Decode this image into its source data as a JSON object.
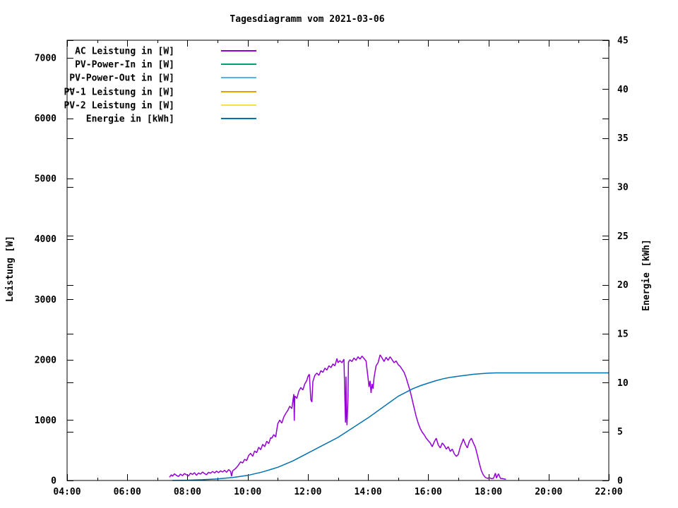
{
  "chart_data": {
    "type": "line",
    "title": "Tagesdiagramm vom 2021-03-06",
    "grid": false,
    "x_axis": {
      "label": "",
      "unit": "time",
      "start_minutes": 240,
      "end_minutes": 1320,
      "major_tick_minutes": 120,
      "minor_tick_minutes": 60,
      "tick_labels": [
        "04:00",
        "06:00",
        "08:00",
        "10:00",
        "12:00",
        "14:00",
        "16:00",
        "18:00",
        "20:00",
        "22:00"
      ]
    },
    "y_axis": {
      "label": "Leistung [W]",
      "range": [
        0,
        7290
      ],
      "ticks": [
        0,
        1000,
        2000,
        3000,
        4000,
        5000,
        6000,
        7000
      ]
    },
    "y2_axis": {
      "label": "Energie [kWh]",
      "range": [
        0,
        45
      ],
      "ticks": [
        0,
        5,
        10,
        15,
        20,
        25,
        30,
        35,
        40,
        45
      ]
    },
    "legend": {
      "position": "top-left-inside",
      "entries": [
        {
          "label": "AC Leistung in [W]",
          "color": "#9400d3"
        },
        {
          "label": "PV-Power-In in [W]",
          "color": "#009e73"
        },
        {
          "label": "PV-Power-Out in [W]",
          "color": "#56b4e9"
        },
        {
          "label": "PV-1 Leistung in [W]",
          "color": "#e69f00"
        },
        {
          "label": "PV-2 Leistung in [W]",
          "color": "#f0e442"
        },
        {
          "label": "Energie in [kWh]",
          "color": "#0072b2"
        }
      ]
    },
    "series": [
      {
        "name": "AC Leistung in [W]",
        "color": "#9400d3",
        "axis": "y1",
        "points_t_min_watt": [
          [
            444,
            55
          ],
          [
            448,
            95
          ],
          [
            450,
            70
          ],
          [
            454,
            110
          ],
          [
            458,
            85
          ],
          [
            462,
            65
          ],
          [
            466,
            105
          ],
          [
            470,
            80
          ],
          [
            474,
            115
          ],
          [
            478,
            95
          ],
          [
            482,
            75
          ],
          [
            486,
            120
          ],
          [
            490,
            100
          ],
          [
            494,
            130
          ],
          [
            498,
            85
          ],
          [
            502,
            125
          ],
          [
            506,
            105
          ],
          [
            510,
            140
          ],
          [
            514,
            115
          ],
          [
            518,
            95
          ],
          [
            522,
            135
          ],
          [
            526,
            120
          ],
          [
            530,
            150
          ],
          [
            534,
            125
          ],
          [
            538,
            155
          ],
          [
            542,
            130
          ],
          [
            546,
            160
          ],
          [
            550,
            140
          ],
          [
            554,
            170
          ],
          [
            558,
            135
          ],
          [
            562,
            180
          ],
          [
            566,
            150
          ],
          [
            568,
            70
          ],
          [
            570,
            160
          ],
          [
            574,
            185
          ],
          [
            578,
            215
          ],
          [
            582,
            260
          ],
          [
            586,
            310
          ],
          [
            590,
            290
          ],
          [
            594,
            350
          ],
          [
            598,
            330
          ],
          [
            602,
            415
          ],
          [
            606,
            450
          ],
          [
            610,
            400
          ],
          [
            614,
            490
          ],
          [
            618,
            460
          ],
          [
            622,
            550
          ],
          [
            626,
            510
          ],
          [
            630,
            600
          ],
          [
            634,
            560
          ],
          [
            638,
            650
          ],
          [
            642,
            610
          ],
          [
            646,
            710
          ],
          [
            648,
            700
          ],
          [
            652,
            760
          ],
          [
            656,
            720
          ],
          [
            658,
            840
          ],
          [
            660,
            940
          ],
          [
            664,
            1000
          ],
          [
            668,
            950
          ],
          [
            672,
            1050
          ],
          [
            676,
            1110
          ],
          [
            680,
            1160
          ],
          [
            684,
            1230
          ],
          [
            688,
            1190
          ],
          [
            692,
            1430
          ],
          [
            693,
            990
          ],
          [
            694,
            1400
          ],
          [
            698,
            1360
          ],
          [
            702,
            1480
          ],
          [
            706,
            1540
          ],
          [
            710,
            1500
          ],
          [
            714,
            1600
          ],
          [
            718,
            1660
          ],
          [
            720,
            1720
          ],
          [
            723,
            1760
          ],
          [
            726,
            1340
          ],
          [
            728,
            1300
          ],
          [
            730,
            1640
          ],
          [
            734,
            1740
          ],
          [
            738,
            1780
          ],
          [
            742,
            1740
          ],
          [
            746,
            1820
          ],
          [
            750,
            1790
          ],
          [
            754,
            1860
          ],
          [
            758,
            1830
          ],
          [
            762,
            1900
          ],
          [
            766,
            1870
          ],
          [
            770,
            1930
          ],
          [
            774,
            1900
          ],
          [
            778,
            2020
          ],
          [
            780,
            1950
          ],
          [
            784,
            1985
          ],
          [
            788,
            1950
          ],
          [
            792,
            2010
          ],
          [
            794,
            1320
          ],
          [
            795,
            960
          ],
          [
            796,
            1720
          ],
          [
            797,
            1100
          ],
          [
            798,
            915
          ],
          [
            800,
            1350
          ],
          [
            801,
            1960
          ],
          [
            804,
            2000
          ],
          [
            808,
            1970
          ],
          [
            812,
            2030
          ],
          [
            816,
            1990
          ],
          [
            820,
            2050
          ],
          [
            824,
            2010
          ],
          [
            828,
            2060
          ],
          [
            832,
            2020
          ],
          [
            836,
            1980
          ],
          [
            840,
            1700
          ],
          [
            842,
            1550
          ],
          [
            844,
            1650
          ],
          [
            846,
            1450
          ],
          [
            848,
            1600
          ],
          [
            850,
            1520
          ],
          [
            852,
            1700
          ],
          [
            856,
            1900
          ],
          [
            860,
            1950
          ],
          [
            864,
            2080
          ],
          [
            868,
            2030
          ],
          [
            872,
            1970
          ],
          [
            876,
            2040
          ],
          [
            880,
            1990
          ],
          [
            884,
            2050
          ],
          [
            888,
            2000
          ],
          [
            892,
            1950
          ],
          [
            896,
            1980
          ],
          [
            900,
            1920
          ],
          [
            904,
            1890
          ],
          [
            908,
            1840
          ],
          [
            912,
            1790
          ],
          [
            916,
            1700
          ],
          [
            920,
            1590
          ],
          [
            924,
            1480
          ],
          [
            928,
            1340
          ],
          [
            932,
            1200
          ],
          [
            936,
            1060
          ],
          [
            940,
            950
          ],
          [
            944,
            860
          ],
          [
            948,
            800
          ],
          [
            952,
            755
          ],
          [
            956,
            700
          ],
          [
            960,
            660
          ],
          [
            964,
            620
          ],
          [
            968,
            560
          ],
          [
            972,
            640
          ],
          [
            976,
            700
          ],
          [
            980,
            590
          ],
          [
            984,
            540
          ],
          [
            988,
            620
          ],
          [
            992,
            580
          ],
          [
            996,
            520
          ],
          [
            1000,
            560
          ],
          [
            1004,
            480
          ],
          [
            1008,
            520
          ],
          [
            1012,
            440
          ],
          [
            1016,
            400
          ],
          [
            1020,
            430
          ],
          [
            1024,
            560
          ],
          [
            1028,
            640
          ],
          [
            1030,
            690
          ],
          [
            1034,
            600
          ],
          [
            1038,
            540
          ],
          [
            1042,
            650
          ],
          [
            1046,
            700
          ],
          [
            1050,
            620
          ],
          [
            1054,
            550
          ],
          [
            1058,
            420
          ],
          [
            1062,
            280
          ],
          [
            1066,
            160
          ],
          [
            1070,
            90
          ],
          [
            1074,
            50
          ],
          [
            1078,
            35
          ],
          [
            1082,
            45
          ],
          [
            1086,
            30
          ],
          [
            1090,
            35
          ],
          [
            1094,
            120
          ],
          [
            1096,
            40
          ],
          [
            1100,
            110
          ],
          [
            1104,
            35
          ],
          [
            1108,
            30
          ],
          [
            1112,
            25
          ],
          [
            1115,
            20
          ]
        ]
      },
      {
        "name": "PV-Power-In in [W]",
        "color": "#009e73",
        "axis": "y1",
        "points_t_min_watt": []
      },
      {
        "name": "PV-Power-Out in [W]",
        "color": "#56b4e9",
        "axis": "y1",
        "points_t_min_watt": []
      },
      {
        "name": "PV-1 Leistung in [W]",
        "color": "#e69f00",
        "axis": "y1",
        "points_t_min_watt": []
      },
      {
        "name": "PV-2 Leistung in [W]",
        "color": "#f0e442",
        "axis": "y1",
        "points_t_min_watt": []
      },
      {
        "name": "Energie in [kWh]",
        "color": "#0072b2",
        "axis": "y2",
        "points_t_min_kwh": [
          [
            450,
            0
          ],
          [
            480,
            0.03
          ],
          [
            510,
            0.08
          ],
          [
            540,
            0.16
          ],
          [
            570,
            0.3
          ],
          [
            600,
            0.52
          ],
          [
            630,
            0.88
          ],
          [
            660,
            1.35
          ],
          [
            690,
            2.0
          ],
          [
            720,
            2.8
          ],
          [
            750,
            3.6
          ],
          [
            780,
            4.4
          ],
          [
            810,
            5.4
          ],
          [
            840,
            6.4
          ],
          [
            870,
            7.5
          ],
          [
            900,
            8.6
          ],
          [
            915,
            9.0
          ],
          [
            930,
            9.4
          ],
          [
            945,
            9.7
          ],
          [
            960,
            9.95
          ],
          [
            975,
            10.2
          ],
          [
            990,
            10.4
          ],
          [
            1005,
            10.55
          ],
          [
            1020,
            10.65
          ],
          [
            1035,
            10.75
          ],
          [
            1050,
            10.85
          ],
          [
            1065,
            10.92
          ],
          [
            1080,
            10.97
          ],
          [
            1095,
            11.0
          ],
          [
            1320,
            11.0
          ]
        ]
      }
    ]
  }
}
